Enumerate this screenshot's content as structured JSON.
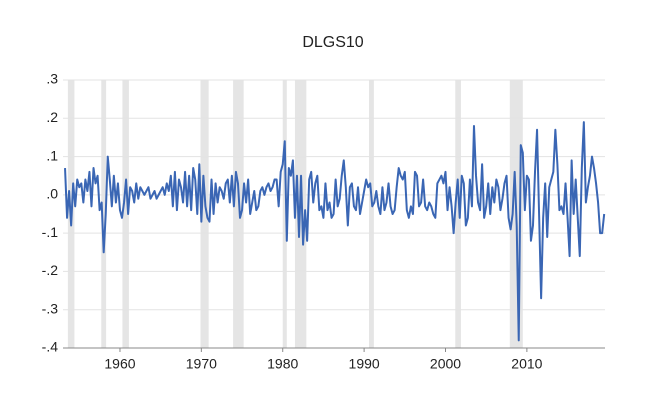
{
  "chart_data": {
    "type": "line",
    "title": "DLGS10",
    "xlim": [
      1953.0,
      2019.6
    ],
    "xticks": [
      1960,
      1970,
      1980,
      1990,
      2000,
      2010
    ],
    "ylim": [
      -0.4,
      0.3
    ],
    "yticks": [
      {
        "value": 0.3,
        "label": ".3"
      },
      {
        "value": 0.2,
        "label": ".2"
      },
      {
        "value": 0.1,
        "label": ".1"
      },
      {
        "value": 0,
        "label": ".0"
      },
      {
        "value": -0.1,
        "label": "-.1"
      },
      {
        "value": -0.2,
        "label": "-.2"
      },
      {
        "value": -0.3,
        "label": "-.3"
      },
      {
        "value": -0.4,
        "label": "-.4"
      }
    ],
    "grid": true,
    "recessions": [
      [
        1953.6,
        1954.4
      ],
      [
        1957.7,
        1958.3
      ],
      [
        1960.3,
        1961.1
      ],
      [
        1969.9,
        1970.9
      ],
      [
        1973.9,
        1975.2
      ],
      [
        1980.0,
        1980.5
      ],
      [
        1981.5,
        1982.9
      ],
      [
        1990.6,
        1991.2
      ],
      [
        2001.2,
        2001.9
      ],
      [
        2007.9,
        2009.5
      ]
    ],
    "x": [
      1953.25,
      1953.5,
      1953.75,
      1954,
      1954.25,
      1954.5,
      1954.75,
      1955,
      1955.25,
      1955.5,
      1955.75,
      1956,
      1956.25,
      1956.5,
      1956.75,
      1957,
      1957.25,
      1957.5,
      1957.75,
      1958,
      1958.25,
      1958.5,
      1958.75,
      1959,
      1959.25,
      1959.5,
      1959.75,
      1960,
      1960.25,
      1960.5,
      1960.75,
      1961,
      1961.25,
      1961.5,
      1961.75,
      1962,
      1962.25,
      1962.5,
      1962.75,
      1963,
      1963.25,
      1963.5,
      1963.75,
      1964,
      1964.25,
      1964.5,
      1964.75,
      1965,
      1965.25,
      1965.5,
      1965.75,
      1966,
      1966.25,
      1966.5,
      1966.75,
      1967,
      1967.25,
      1967.5,
      1967.75,
      1968,
      1968.25,
      1968.5,
      1968.75,
      1969,
      1969.25,
      1969.5,
      1969.75,
      1970,
      1970.25,
      1970.5,
      1970.75,
      1971,
      1971.25,
      1971.5,
      1971.75,
      1972,
      1972.25,
      1972.5,
      1972.75,
      1973,
      1973.25,
      1973.5,
      1973.75,
      1974,
      1974.25,
      1974.5,
      1974.75,
      1975,
      1975.25,
      1975.5,
      1975.75,
      1976,
      1976.25,
      1976.5,
      1976.75,
      1977,
      1977.25,
      1977.5,
      1977.75,
      1978,
      1978.25,
      1978.5,
      1978.75,
      1979,
      1979.25,
      1979.5,
      1979.75,
      1980,
      1980.25,
      1980.5,
      1980.75,
      1981,
      1981.25,
      1981.5,
      1981.75,
      1982,
      1982.25,
      1982.5,
      1982.75,
      1983,
      1983.25,
      1983.5,
      1983.75,
      1984,
      1984.25,
      1984.5,
      1984.75,
      1985,
      1985.25,
      1985.5,
      1985.75,
      1986,
      1986.25,
      1986.5,
      1986.75,
      1987,
      1987.25,
      1987.5,
      1987.75,
      1988,
      1988.25,
      1988.5,
      1988.75,
      1989,
      1989.25,
      1989.5,
      1989.75,
      1990,
      1990.25,
      1990.5,
      1990.75,
      1991,
      1991.25,
      1991.5,
      1991.75,
      1992,
      1992.25,
      1992.5,
      1992.75,
      1993,
      1993.25,
      1993.5,
      1993.75,
      1994,
      1994.25,
      1994.5,
      1994.75,
      1995,
      1995.25,
      1995.5,
      1995.75,
      1996,
      1996.25,
      1996.5,
      1996.75,
      1997,
      1997.25,
      1997.5,
      1997.75,
      1998,
      1998.25,
      1998.5,
      1998.75,
      1999,
      1999.25,
      1999.5,
      1999.75,
      2000,
      2000.25,
      2000.5,
      2000.75,
      2001,
      2001.25,
      2001.5,
      2001.75,
      2002,
      2002.25,
      2002.5,
      2002.75,
      2003,
      2003.25,
      2003.5,
      2003.75,
      2004,
      2004.25,
      2004.5,
      2004.75,
      2005,
      2005.25,
      2005.5,
      2005.75,
      2006,
      2006.25,
      2006.5,
      2006.75,
      2007,
      2007.25,
      2007.5,
      2007.75,
      2008,
      2008.25,
      2008.5,
      2008.75,
      2009,
      2009.25,
      2009.5,
      2009.75,
      2010,
      2010.25,
      2010.5,
      2010.75,
      2011,
      2011.25,
      2011.5,
      2011.75,
      2012,
      2012.25,
      2012.5,
      2012.75,
      2013,
      2013.25,
      2013.5,
      2013.75,
      2014,
      2014.25,
      2014.5,
      2014.75,
      2015,
      2015.25,
      2015.5,
      2015.75,
      2016,
      2016.25,
      2016.5,
      2016.75,
      2017,
      2017.25,
      2017.5,
      2017.75,
      2018,
      2018.25,
      2018.5,
      2018.75,
      2019,
      2019.25,
      2019.5
    ],
    "series": [
      {
        "color": "#3a66b4",
        "values": [
          0.07,
          -0.06,
          0.01,
          -0.08,
          0.03,
          -0.03,
          0.04,
          0.02,
          0.03,
          -0.02,
          0.04,
          0.01,
          0.06,
          -0.03,
          0.07,
          0.03,
          0.05,
          -0.04,
          -0.02,
          -0.15,
          -0.05,
          0.1,
          0.04,
          -0.03,
          0.05,
          -0.02,
          0.03,
          -0.04,
          -0.06,
          -0.02,
          0.04,
          -0.05,
          0.02,
          0.01,
          -0.02,
          0.03,
          -0.01,
          0.02,
          0.01,
          0.0,
          0.01,
          0.02,
          -0.01,
          0.0,
          0.01,
          -0.01,
          0.0,
          0.01,
          0.02,
          0.0,
          0.03,
          0.01,
          0.05,
          -0.03,
          0.06,
          -0.04,
          0.04,
          0.02,
          -0.02,
          0.06,
          -0.03,
          0.05,
          -0.04,
          0.07,
          0.04,
          -0.05,
          0.08,
          -0.07,
          0.05,
          -0.03,
          -0.06,
          -0.07,
          0.04,
          -0.05,
          0.03,
          -0.02,
          0.02,
          0.01,
          -0.01,
          0.03,
          0.04,
          -0.02,
          0.05,
          -0.03,
          0.06,
          0.03,
          -0.06,
          -0.04,
          0.03,
          -0.02,
          0.04,
          -0.05,
          -0.02,
          0.01,
          -0.04,
          -0.03,
          0.01,
          0.02,
          0.0,
          0.02,
          0.03,
          0.01,
          0.02,
          0.04,
          0.04,
          -0.03,
          0.06,
          0.08,
          0.14,
          -0.12,
          0.07,
          0.05,
          0.09,
          -0.06,
          0.05,
          -0.11,
          0.05,
          -0.13,
          -0.04,
          -0.12,
          0.04,
          0.06,
          -0.02,
          0.03,
          0.05,
          -0.04,
          -0.03,
          -0.06,
          0.03,
          -0.04,
          -0.02,
          -0.06,
          -0.05,
          0.04,
          -0.03,
          -0.01,
          0.05,
          0.09,
          0.02,
          -0.08,
          0.02,
          0.03,
          -0.03,
          -0.04,
          0.02,
          -0.05,
          -0.02,
          0.01,
          0.04,
          0.02,
          0.03,
          -0.03,
          -0.02,
          0.01,
          -0.03,
          -0.05,
          0.02,
          -0.04,
          -0.02,
          0.03,
          -0.03,
          -0.05,
          -0.04,
          0.02,
          0.07,
          0.05,
          0.04,
          0.06,
          -0.04,
          -0.06,
          -0.03,
          -0.05,
          0.06,
          0.05,
          -0.03,
          -0.02,
          0.04,
          -0.03,
          -0.04,
          -0.02,
          -0.03,
          -0.05,
          -0.06,
          0.03,
          0.04,
          0.05,
          0.03,
          0.06,
          -0.04,
          0.02,
          -0.03,
          -0.1,
          -0.02,
          0.04,
          -0.06,
          0.05,
          0.03,
          -0.08,
          -0.06,
          0.04,
          -0.03,
          0.18,
          0.05,
          -0.02,
          -0.04,
          0.08,
          -0.06,
          -0.03,
          0.03,
          -0.05,
          0.02,
          -0.02,
          0.04,
          0.02,
          -0.04,
          -0.01,
          0.03,
          0.05,
          -0.06,
          -0.09,
          -0.05,
          0.06,
          -0.08,
          -0.38,
          0.13,
          0.11,
          -0.04,
          0.05,
          0.04,
          -0.12,
          -0.08,
          0.06,
          0.17,
          -0.05,
          -0.27,
          -0.06,
          0.03,
          -0.11,
          0.02,
          0.04,
          0.06,
          0.17,
          0.08,
          -0.04,
          -0.03,
          -0.05,
          0.03,
          -0.06,
          -0.16,
          0.09,
          -0.05,
          0.04,
          -0.06,
          -0.16,
          0.07,
          0.19,
          -0.02,
          0.02,
          0.05,
          0.1,
          0.07,
          0.03,
          -0.02,
          -0.1,
          -0.1,
          -0.05
        ]
      }
    ]
  }
}
